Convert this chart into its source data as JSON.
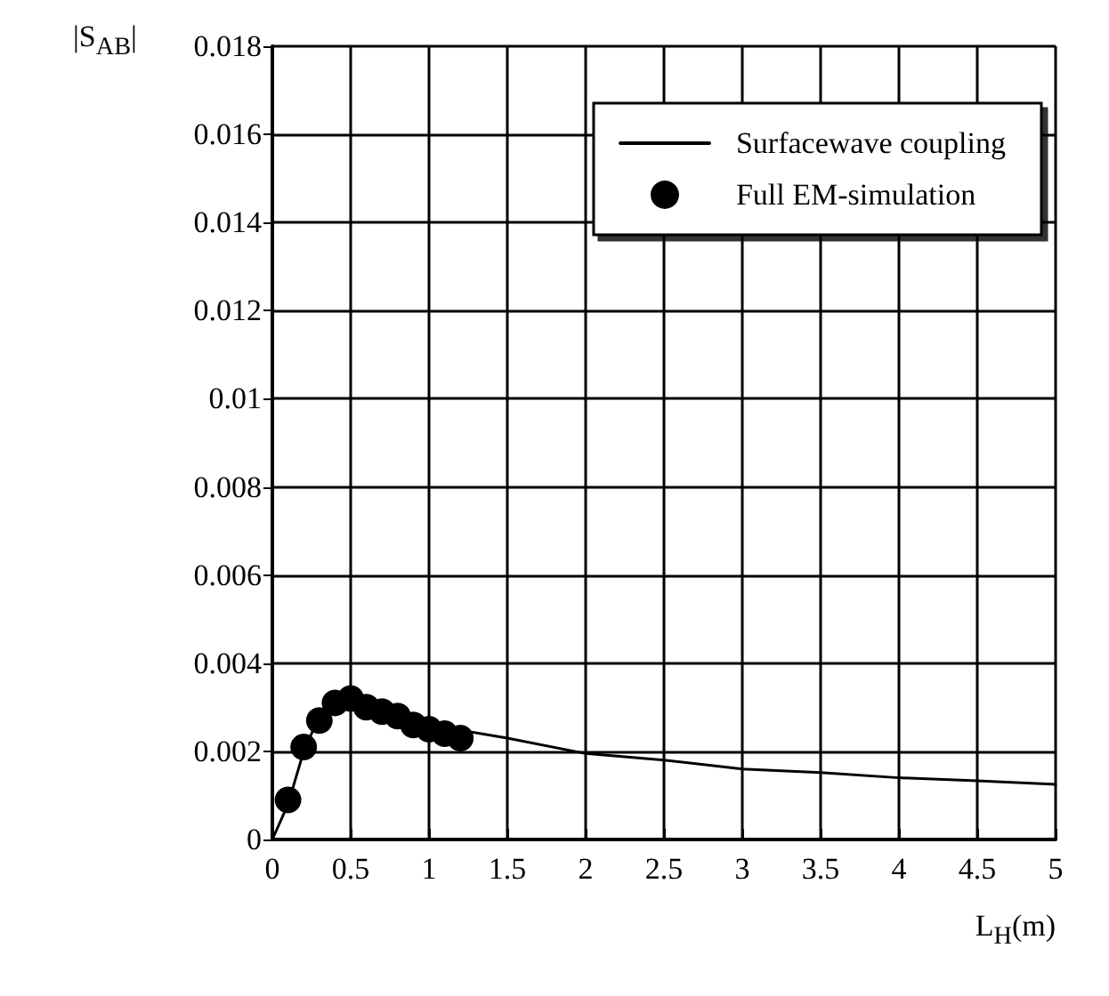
{
  "chart_data": {
    "type": "line",
    "xlabel": "L$_{H}$(m)",
    "ylabel": "|S$_{AB}$|",
    "xlim": [
      0,
      5
    ],
    "xticks": [
      0,
      0.5,
      1,
      1.5,
      2,
      2.5,
      3,
      3.5,
      4,
      4.5,
      5
    ],
    "ylim": [
      0,
      0.018
    ],
    "yticks": [
      0,
      0.002,
      0.004,
      0.006,
      0.008,
      0.01,
      0.012,
      0.014,
      0.016,
      0.018
    ],
    "grid": true,
    "legend": "top right",
    "series": [
      {
        "name": "Surfacewave coupling",
        "color": "#000000",
        "marker": "none",
        "line_style": "solid",
        "x": [
          0,
          0.1,
          0.2,
          0.3,
          0.4,
          0.5,
          0.75,
          1,
          1.5,
          2,
          2.5,
          3,
          3.5,
          4,
          4.5,
          5
        ],
        "values": [
          0,
          0.0008,
          0.002,
          0.0028,
          0.0031,
          0.0032,
          0.0029,
          0.0026,
          0.0023,
          0.00195,
          0.0018,
          0.0016,
          0.00152,
          0.0014,
          0.00133,
          0.00125
        ]
      },
      {
        "name": "Full EM-simulation",
        "type": "scatter",
        "color": "#000000",
        "marker": "circle",
        "x": [
          0.1,
          0.2,
          0.3,
          0.4,
          0.5,
          0.6,
          0.7,
          0.8,
          0.9,
          1.0,
          1.1,
          1.2
        ],
        "values": [
          0.0009,
          0.0021,
          0.0027,
          0.0031,
          0.0032,
          0.003,
          0.0029,
          0.0028,
          0.0026,
          0.0025,
          0.0024,
          0.0023
        ]
      }
    ]
  }
}
